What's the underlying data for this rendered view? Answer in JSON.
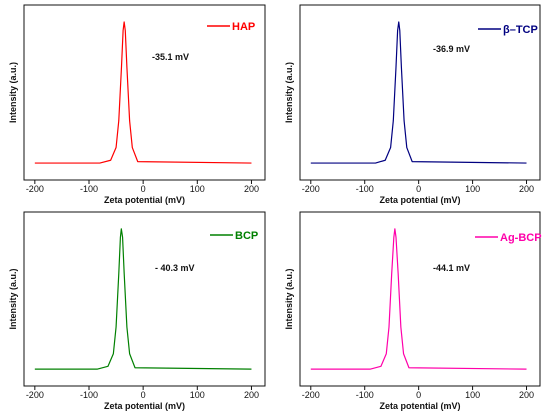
{
  "chart_data": [
    {
      "type": "line",
      "xlabel": "Zeta potential (mV)",
      "ylabel": "Intensity (a.u.)",
      "xlim": [
        -220,
        225
      ],
      "ylim": [
        -0.12,
        1.12
      ],
      "xticks": [
        -200,
        -100,
        0,
        100,
        200
      ],
      "annotation": "-35.1 mV",
      "series": [
        {
          "name": "HAP",
          "color": "#ff0000",
          "peak_x": -35.1,
          "x": [
            -200,
            -80,
            -60,
            -50,
            -45,
            -40,
            -37,
            -35.1,
            -33,
            -30,
            -25,
            -20,
            -10,
            200
          ],
          "y": [
            0,
            0,
            0.02,
            0.11,
            0.3,
            0.68,
            0.94,
            1.0,
            0.94,
            0.68,
            0.3,
            0.11,
            0.01,
            0
          ]
        }
      ]
    },
    {
      "type": "line",
      "xlabel": "Zeta potential (mV)",
      "ylabel": "Intensity (a.u.)",
      "xlim": [
        -220,
        225
      ],
      "ylim": [
        -0.12,
        1.12
      ],
      "xticks": [
        -200,
        -100,
        0,
        100,
        200
      ],
      "annotation": "-36.9 mV",
      "series": [
        {
          "name": "β–TCP",
          "color": "#000080",
          "peak_x": -36.9,
          "x": [
            -200,
            -80,
            -62,
            -52,
            -47,
            -42,
            -39,
            -36.9,
            -35,
            -32,
            -27,
            -22,
            -12,
            200
          ],
          "y": [
            0,
            0,
            0.02,
            0.11,
            0.3,
            0.68,
            0.94,
            1.0,
            0.94,
            0.68,
            0.3,
            0.11,
            0.01,
            0
          ]
        }
      ]
    },
    {
      "type": "line",
      "xlabel": "Zeta potential (mV)",
      "ylabel": "Intensity (a.u.)",
      "xlim": [
        -220,
        225
      ],
      "ylim": [
        -0.12,
        1.12
      ],
      "xticks": [
        -200,
        -100,
        0,
        100,
        200
      ],
      "annotation": "- 40.3 mV",
      "series": [
        {
          "name": "BCP",
          "color": "#008000",
          "peak_x": -40.3,
          "x": [
            -200,
            -85,
            -65,
            -55,
            -50,
            -45,
            -42,
            -40.3,
            -38,
            -35,
            -30,
            -25,
            -15,
            200
          ],
          "y": [
            0,
            0,
            0.02,
            0.11,
            0.3,
            0.68,
            0.94,
            1.0,
            0.94,
            0.68,
            0.3,
            0.11,
            0.01,
            0
          ]
        }
      ]
    },
    {
      "type": "line",
      "xlabel": "Zeta potential (mV)",
      "ylabel": "Intensity (a.u.)",
      "xlim": [
        -220,
        225
      ],
      "ylim": [
        -0.12,
        1.12
      ],
      "xticks": [
        -200,
        -100,
        0,
        100,
        200
      ],
      "annotation": "-44.1 mV",
      "series": [
        {
          "name": "Ag-BCP",
          "color": "#ff00aa",
          "peak_x": -44.1,
          "x": [
            -200,
            -90,
            -70,
            -60,
            -55,
            -50,
            -46,
            -44.1,
            -42,
            -38,
            -33,
            -28,
            -18,
            200
          ],
          "y": [
            0,
            0,
            0.02,
            0.11,
            0.3,
            0.68,
            0.94,
            1.0,
            0.94,
            0.68,
            0.3,
            0.11,
            0.01,
            0
          ]
        }
      ]
    }
  ]
}
